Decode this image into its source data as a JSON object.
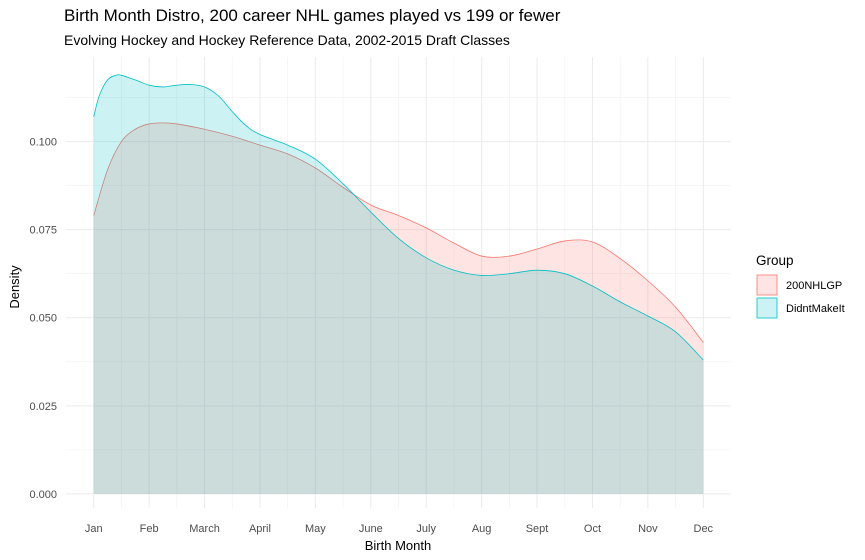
{
  "chart_data": {
    "type": "area",
    "title": "Birth Month Distro, 200 career NHL games played vs 199 or fewer",
    "subtitle": "Evolving Hockey and Hockey Reference Data, 2002-2015 Draft Classes",
    "xlabel": "Birth Month",
    "ylabel": "Density",
    "x_ticks": [
      "Jan",
      "Feb",
      "March",
      "April",
      "May",
      "June",
      "July",
      "Aug",
      "Sept",
      "Oct",
      "Nov",
      "Dec"
    ],
    "y_ticks": [
      "0.000",
      "0.025",
      "0.050",
      "0.075",
      "0.100"
    ],
    "xlim": [
      0.5,
      12.5
    ],
    "ylim": [
      -0.004,
      0.124
    ],
    "grid": true,
    "legend": {
      "title": "Group",
      "placement": "right"
    },
    "series": [
      {
        "name": "200NHLGP",
        "stroke": "#F8766D",
        "fill": "#F8766D",
        "x": [
          1,
          1.25,
          1.5,
          1.75,
          2,
          2.25,
          2.5,
          3,
          3.5,
          4,
          4.5,
          5,
          5.5,
          6,
          6.5,
          7,
          7.5,
          8,
          8.5,
          9,
          9.5,
          10,
          10.5,
          11,
          11.5,
          12
        ],
        "values": [
          0.079,
          0.092,
          0.1,
          0.1035,
          0.105,
          0.1053,
          0.105,
          0.1035,
          0.1015,
          0.099,
          0.0965,
          0.0925,
          0.087,
          0.082,
          0.079,
          0.0755,
          0.0712,
          0.0675,
          0.0675,
          0.0695,
          0.0718,
          0.0715,
          0.0668,
          0.0605,
          0.053,
          0.043
        ]
      },
      {
        "name": "DidntMakeIt",
        "stroke": "#00BFC4",
        "fill": "#00BFC4",
        "x": [
          1,
          1.1,
          1.25,
          1.4,
          1.5,
          1.75,
          2,
          2.25,
          2.5,
          2.75,
          3,
          3.25,
          3.5,
          3.75,
          4,
          4.5,
          5,
          5.5,
          6,
          6.5,
          7,
          7.5,
          8,
          8.5,
          9,
          9.5,
          10,
          10.5,
          11,
          11.5,
          12
        ],
        "values": [
          0.107,
          0.113,
          0.1175,
          0.1188,
          0.1188,
          0.1175,
          0.116,
          0.1155,
          0.116,
          0.1162,
          0.1155,
          0.113,
          0.1085,
          0.1045,
          0.102,
          0.099,
          0.095,
          0.088,
          0.08,
          0.0725,
          0.067,
          0.0635,
          0.062,
          0.0625,
          0.0635,
          0.0625,
          0.059,
          0.0545,
          0.0505,
          0.046,
          0.038
        ]
      }
    ]
  }
}
